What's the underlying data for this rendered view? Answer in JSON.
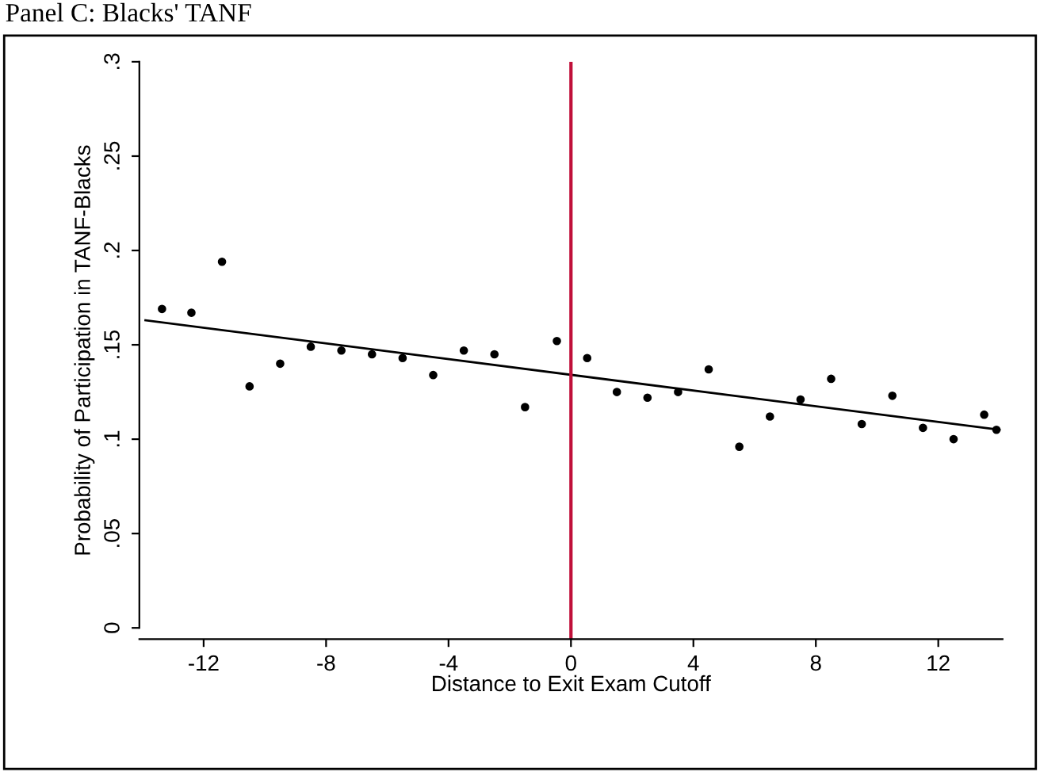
{
  "chart_data": {
    "type": "scatter",
    "title": "Panel C: Blacks' TANF",
    "xlabel": "Distance to Exit Exam Cutoff",
    "ylabel": "Probability of Participation in TANF-Blacks",
    "series": [
      {
        "color": "#000000",
        "marker": "circle",
        "x": [
          -13.36,
          -12.4,
          -11.4,
          -10.5,
          -9.5,
          -8.5,
          -7.5,
          -6.5,
          -5.5,
          -4.5,
          -3.5,
          -2.5,
          -1.5,
          -0.46,
          0.53,
          1.5,
          2.5,
          3.5,
          4.5,
          5.5,
          6.5,
          7.5,
          8.5,
          9.5,
          10.5,
          11.5,
          12.5,
          13.5,
          13.9
        ],
        "values": [
          0.169,
          0.167,
          0.194,
          0.128,
          0.14,
          0.149,
          0.147,
          0.145,
          0.143,
          0.134,
          0.147,
          0.145,
          0.117,
          0.152,
          0.143,
          0.125,
          0.122,
          0.125,
          0.137,
          0.096,
          0.112,
          0.121,
          0.132,
          0.108,
          0.123,
          0.106,
          0.1,
          0.113,
          0.105
        ]
      },
      {
        "type": "line",
        "color": "#000000",
        "x": [
          -13.9,
          14
        ],
        "values": [
          0.163,
          0.105
        ]
      }
    ],
    "ref_lines": [
      {
        "axis": "x",
        "value": 0,
        "color": "#c0103a"
      }
    ],
    "xlim": [
      -14.1,
      14.1
    ],
    "ylim": [
      -0.006,
      0.3
    ],
    "xticks": [
      {
        "value": -12,
        "label": "-12"
      },
      {
        "value": -8,
        "label": "-8"
      },
      {
        "value": -4,
        "label": "-4"
      },
      0,
      4,
      8,
      12
    ],
    "yticks": [
      0,
      {
        "value": 0.05,
        "label": ".05"
      },
      {
        "value": 0.1,
        "label": ".1"
      },
      {
        "value": 0.15,
        "label": ".15"
      },
      {
        "value": 0.2,
        "label": ".2"
      },
      {
        "value": 0.25,
        "label": ".25"
      },
      {
        "value": 0.3,
        "label": ".3"
      }
    ]
  }
}
